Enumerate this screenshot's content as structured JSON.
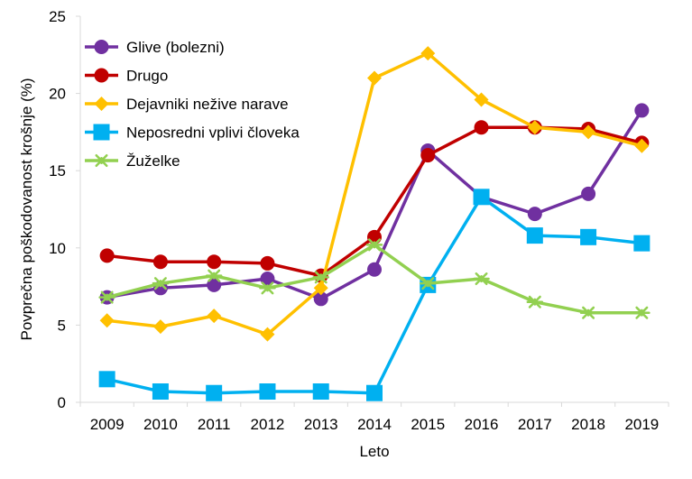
{
  "chart_data": {
    "type": "line",
    "xlabel": "Leto",
    "ylabel": "Povprečna poškodovanost  krošnje (%)",
    "ylim": [
      0,
      25
    ],
    "yticks": [
      0,
      5,
      10,
      15,
      20,
      25
    ],
    "categories": [
      "2009",
      "2010",
      "2011",
      "2012",
      "2013",
      "2014",
      "2015",
      "2016",
      "2017",
      "2018",
      "2019"
    ],
    "grid": false,
    "legend_position": "top-left",
    "series": [
      {
        "name": "Glive (bolezni)",
        "color": "#7030a0",
        "marker": "circle",
        "values": [
          6.8,
          7.4,
          7.6,
          8.0,
          6.7,
          8.6,
          16.3,
          13.3,
          12.2,
          13.5,
          18.9
        ]
      },
      {
        "name": "Drugo",
        "color": "#c00000",
        "marker": "circle",
        "values": [
          9.5,
          9.1,
          9.1,
          9.0,
          8.2,
          10.7,
          16.0,
          17.8,
          17.8,
          17.7,
          16.8
        ]
      },
      {
        "name": "Dejavniki nežive narave",
        "color": "#ffc000",
        "marker": "diamond",
        "values": [
          5.3,
          4.9,
          5.6,
          4.4,
          7.4,
          21.0,
          22.6,
          19.6,
          17.8,
          17.5,
          16.6
        ]
      },
      {
        "name": "Neposredni vplivi človeka",
        "color": "#00b0f0",
        "marker": "square",
        "values": [
          1.5,
          0.7,
          0.6,
          0.7,
          0.7,
          0.6,
          7.6,
          13.3,
          10.8,
          10.7,
          10.3
        ]
      },
      {
        "name": "Žuželke",
        "color": "#92d050",
        "marker": "asterisk",
        "values": [
          6.8,
          7.7,
          8.2,
          7.4,
          8.1,
          10.2,
          7.7,
          8.0,
          6.5,
          5.8,
          5.8
        ]
      }
    ]
  }
}
